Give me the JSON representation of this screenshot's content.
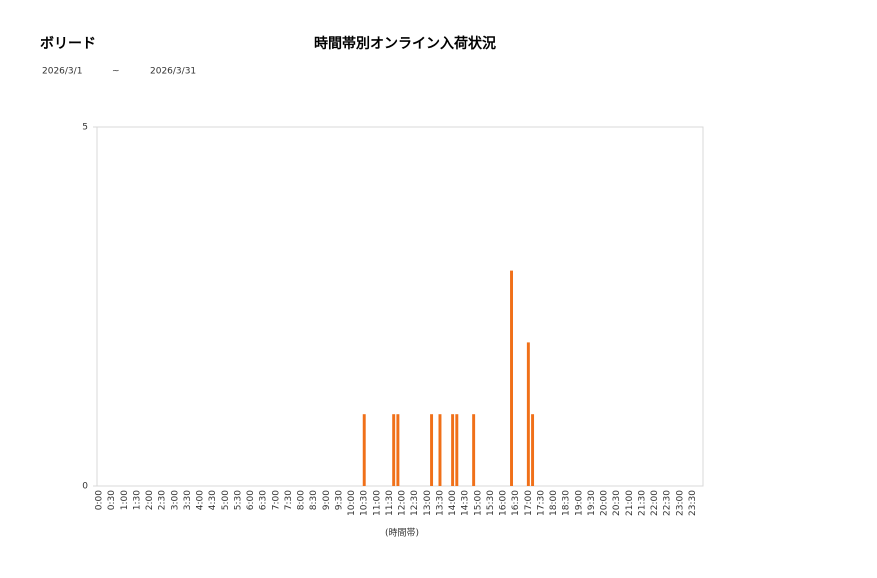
{
  "header": {
    "store": "ボリード",
    "date_from": "2026/3/1",
    "separator": "~",
    "date_to": "2026/3/31"
  },
  "chart_data": {
    "type": "bar",
    "title": "時間帯別オンライン入荷状況",
    "x_label": "(時間帯)",
    "color": "#f07019",
    "ylim": [
      0,
      5
    ],
    "yticks": [
      0,
      5
    ],
    "categories": [
      "0:00",
      null,
      null,
      "0:30",
      null,
      null,
      "1:00",
      null,
      null,
      "1:30",
      null,
      null,
      "2:00",
      null,
      null,
      "2:30",
      null,
      null,
      "3:00",
      null,
      null,
      "3:30",
      null,
      null,
      "4:00",
      null,
      null,
      "4:30",
      null,
      null,
      "5:00",
      null,
      null,
      "5:30",
      null,
      null,
      "6:00",
      null,
      null,
      "6:30",
      null,
      null,
      "7:00",
      null,
      null,
      "7:30",
      null,
      null,
      "8:00",
      null,
      null,
      "8:30",
      null,
      null,
      "9:00",
      null,
      null,
      "9:30",
      null,
      null,
      "10:00",
      null,
      null,
      "10:30",
      null,
      null,
      "11:00",
      null,
      null,
      "11:30",
      null,
      null,
      "12:00",
      null,
      null,
      "12:30",
      null,
      null,
      "13:00",
      null,
      null,
      "13:30",
      null,
      null,
      "14:00",
      null,
      null,
      "14:30",
      null,
      null,
      "15:00",
      null,
      null,
      "15:30",
      null,
      null,
      "16:00",
      null,
      null,
      "16:30",
      null,
      null,
      "17:00",
      null,
      null,
      "17:30",
      null,
      null,
      "18:00",
      null,
      null,
      "18:30",
      null,
      null,
      "19:00",
      null,
      null,
      "19:30",
      null,
      null,
      "20:00",
      null,
      null,
      "20:30",
      null,
      null,
      "21:00",
      null,
      null,
      "21:30",
      null,
      null,
      "22:00",
      null,
      null,
      "22:30",
      null,
      null,
      "23:00",
      null,
      null,
      "23:30",
      null,
      null
    ],
    "values": [
      0,
      0,
      0,
      0,
      0,
      0,
      0,
      0,
      0,
      0,
      0,
      0,
      0,
      0,
      0,
      0,
      0,
      0,
      0,
      0,
      0,
      0,
      0,
      0,
      0,
      0,
      0,
      0,
      0,
      0,
      0,
      0,
      0,
      0,
      0,
      0,
      0,
      0,
      0,
      0,
      0,
      0,
      0,
      0,
      0,
      0,
      0,
      0,
      0,
      0,
      0,
      0,
      0,
      0,
      0,
      0,
      0,
      0,
      0,
      0,
      0,
      0,
      0,
      1,
      0,
      0,
      0,
      0,
      0,
      0,
      1,
      1,
      0,
      0,
      0,
      0,
      0,
      0,
      0,
      1,
      0,
      1,
      0,
      0,
      1,
      1,
      0,
      0,
      0,
      1,
      0,
      0,
      0,
      0,
      0,
      0,
      0,
      0,
      3,
      0,
      0,
      0,
      2,
      1,
      0,
      0,
      0,
      0,
      0,
      0,
      0,
      0,
      0,
      0,
      0,
      0,
      0,
      0,
      0,
      0,
      0,
      0,
      0,
      0,
      0,
      0,
      0,
      0,
      0,
      0,
      0,
      0,
      0,
      0,
      0,
      0,
      0,
      0,
      0,
      0,
      0,
      0,
      0,
      0
    ]
  }
}
